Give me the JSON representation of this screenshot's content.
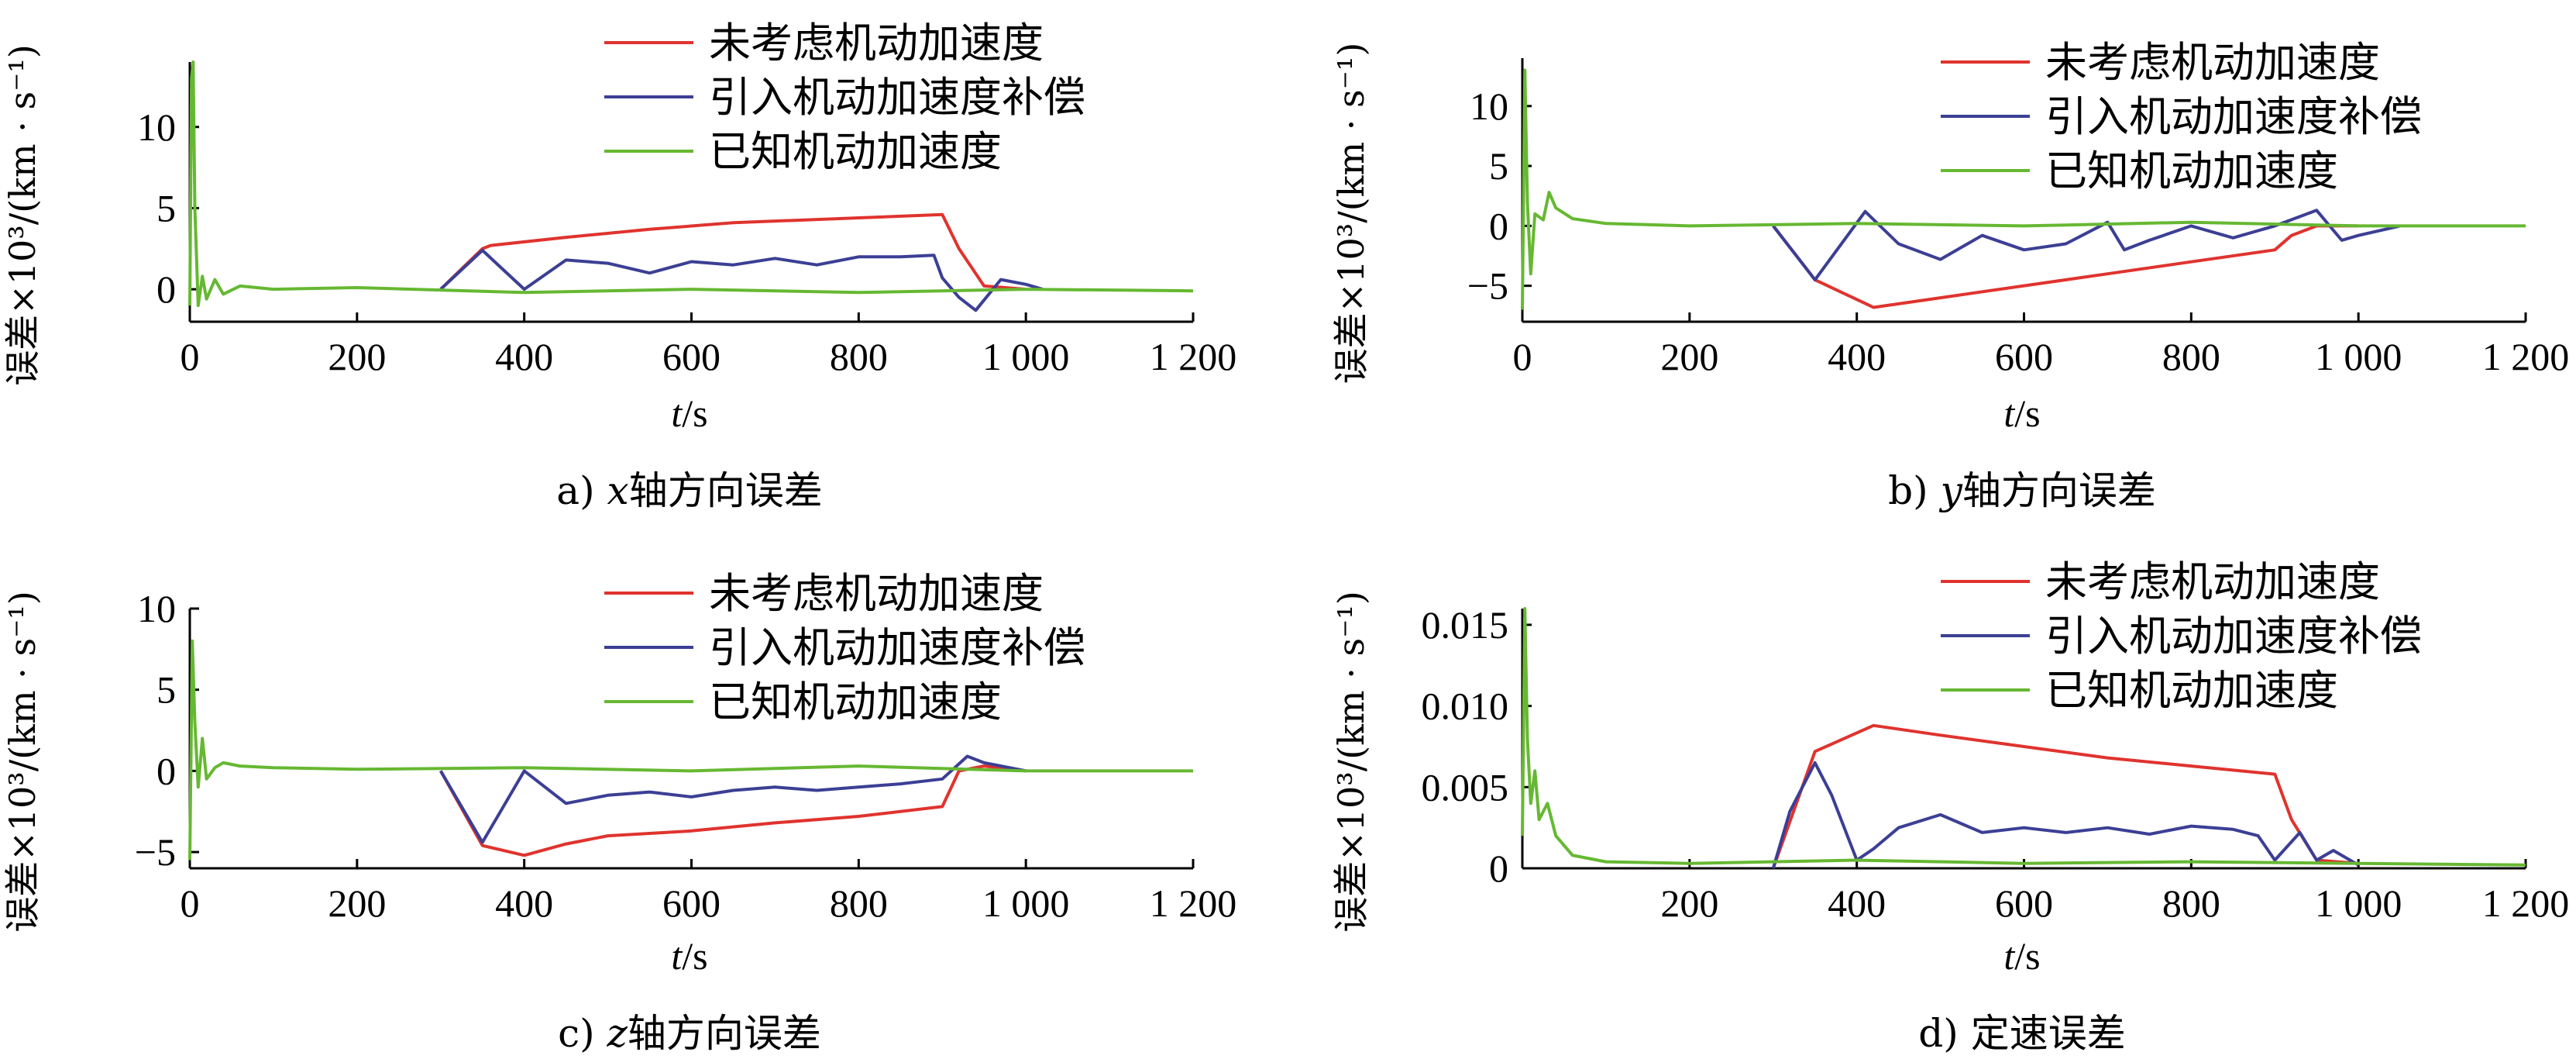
{
  "colors": {
    "red": "#e0332e",
    "blue": "#3b3f94",
    "green": "#66b832"
  },
  "chart_data": [
    {
      "type": "line",
      "caption_prefix": "a) ",
      "caption_var": "x",
      "caption_suffix": "轴方向误差",
      "ylabel": "误差×10³/(km · s⁻¹)",
      "xlabel_var": "t",
      "xlabel_unit": "/s",
      "xlim": [
        0,
        1200
      ],
      "ylim": [
        -2,
        14
      ],
      "xticks": [
        0,
        200,
        400,
        600,
        800,
        1000,
        1200
      ],
      "xtick_labels": [
        "0",
        "200",
        "400",
        "600",
        "800",
        "1 000",
        "1 200"
      ],
      "yticks": [
        0,
        5,
        10
      ],
      "ytick_labels": [
        "0",
        "5",
        "10"
      ],
      "legend": "top-right",
      "series": [
        {
          "name": "未考虑机动加速度",
          "color": "red",
          "x": [
            300,
            350,
            360,
            450,
            550,
            650,
            750,
            850,
            900,
            920,
            950,
            1000
          ],
          "y": [
            0,
            2.5,
            2.7,
            3.2,
            3.7,
            4.1,
            4.3,
            4.5,
            4.6,
            2.5,
            0.2,
            0
          ]
        },
        {
          "name": "引入机动加速度补偿",
          "color": "blue",
          "x": [
            300,
            350,
            400,
            450,
            500,
            550,
            600,
            650,
            700,
            750,
            800,
            850,
            890,
            900,
            920,
            940,
            970,
            1000,
            1020
          ],
          "y": [
            0,
            2.4,
            0,
            1.8,
            1.6,
            1.0,
            1.7,
            1.5,
            1.9,
            1.5,
            2.0,
            2.0,
            2.1,
            0.7,
            -0.5,
            -1.3,
            0.6,
            0.3,
            0
          ]
        },
        {
          "name": "已知机动加速度",
          "color": "green",
          "x": [
            0,
            2,
            4,
            6,
            10,
            15,
            20,
            30,
            40,
            60,
            100,
            200,
            400,
            600,
            800,
            1000,
            1200
          ],
          "y": [
            -1,
            13,
            14,
            5,
            -1,
            0.8,
            -0.6,
            0.6,
            -0.3,
            0.2,
            0,
            0.1,
            -0.2,
            0,
            -0.2,
            0,
            -0.1
          ]
        }
      ]
    },
    {
      "type": "line",
      "caption_prefix": "b) ",
      "caption_var": "y",
      "caption_suffix": "轴方向误差",
      "ylabel": "误差×10³/(km · s⁻¹)",
      "xlabel_var": "t",
      "xlabel_unit": "/s",
      "xlim": [
        0,
        1200
      ],
      "ylim": [
        -8,
        14
      ],
      "xticks": [
        0,
        200,
        400,
        600,
        800,
        1000,
        1200
      ],
      "xtick_labels": [
        "0",
        "200",
        "400",
        "600",
        "800",
        "1 000",
        "1 200"
      ],
      "yticks": [
        -5,
        0,
        5,
        10
      ],
      "ytick_labels": [
        "−5",
        "0",
        "5",
        "10"
      ],
      "legend": "top-right",
      "series": [
        {
          "name": "未考虑机动加速度",
          "color": "red",
          "x": [
            300,
            350,
            420,
            500,
            600,
            700,
            800,
            900,
            920,
            950,
            1000
          ],
          "y": [
            0,
            -4.5,
            -6.8,
            -6.0,
            -5.0,
            -4.0,
            -3.0,
            -2.0,
            -0.8,
            0,
            0
          ]
        },
        {
          "name": "引入机动加速度补偿",
          "color": "blue",
          "x": [
            300,
            350,
            410,
            450,
            500,
            550,
            600,
            650,
            700,
            720,
            750,
            800,
            850,
            900,
            950,
            980,
            1000,
            1050
          ],
          "y": [
            0,
            -4.5,
            1.2,
            -1.5,
            -2.8,
            -0.8,
            -2.0,
            -1.5,
            0.3,
            -2.0,
            -1.2,
            0,
            -1.0,
            0,
            1.3,
            -1.2,
            -0.8,
            0
          ]
        },
        {
          "name": "已知机动加速度",
          "color": "green",
          "x": [
            0,
            3,
            6,
            10,
            15,
            25,
            32,
            40,
            60,
            100,
            200,
            400,
            600,
            800,
            1000,
            1200
          ],
          "y": [
            -7,
            13,
            2,
            -4,
            1,
            0.5,
            2.8,
            1.5,
            0.6,
            0.2,
            0,
            0.2,
            0,
            0.3,
            0,
            0
          ]
        }
      ]
    },
    {
      "type": "line",
      "caption_prefix": "c) ",
      "caption_var": "z",
      "caption_suffix": "轴方向误差",
      "ylabel": "误差×10³/(km · s⁻¹)",
      "xlabel_var": "t",
      "xlabel_unit": "/s",
      "xlim": [
        0,
        1200
      ],
      "ylim": [
        -6,
        10
      ],
      "xticks": [
        0,
        200,
        400,
        600,
        800,
        1000,
        1200
      ],
      "xtick_labels": [
        "0",
        "200",
        "400",
        "600",
        "800",
        "1 000",
        "1 200"
      ],
      "yticks": [
        -5,
        0,
        5,
        10
      ],
      "ytick_labels": [
        "−5",
        "0",
        "5",
        "10"
      ],
      "legend": "top-right",
      "series": [
        {
          "name": "未考虑机动加速度",
          "color": "red",
          "x": [
            300,
            350,
            400,
            450,
            500,
            600,
            700,
            800,
            900,
            920,
            950,
            1000
          ],
          "y": [
            0,
            -4.6,
            -5.2,
            -4.5,
            -4.0,
            -3.7,
            -3.2,
            -2.8,
            -2.2,
            0,
            0.3,
            0
          ]
        },
        {
          "name": "引入机动加速度补偿",
          "color": "blue",
          "x": [
            300,
            350,
            400,
            450,
            500,
            550,
            600,
            650,
            700,
            750,
            800,
            850,
            900,
            930,
            950,
            1000
          ],
          "y": [
            0,
            -4.4,
            0,
            -2.0,
            -1.5,
            -1.3,
            -1.6,
            -1.2,
            -1.0,
            -1.2,
            -1.0,
            -0.8,
            -0.5,
            0.9,
            0.5,
            0
          ]
        },
        {
          "name": "已知机动加速度",
          "color": "green",
          "x": [
            0,
            3,
            6,
            10,
            15,
            20,
            30,
            40,
            60,
            100,
            200,
            400,
            600,
            800,
            1000,
            1200
          ],
          "y": [
            -5.5,
            8,
            3,
            -1,
            2,
            -0.5,
            0.2,
            0.5,
            0.3,
            0.2,
            0.1,
            0.2,
            0,
            0.3,
            0,
            0
          ]
        }
      ]
    },
    {
      "type": "line",
      "caption_prefix": "d) ",
      "caption_var": "",
      "caption_suffix": "定速误差",
      "ylabel": "误差×10³/(km · s⁻¹)",
      "xlabel_var": "t",
      "xlabel_unit": "/s",
      "xlim": [
        0,
        1200
      ],
      "ylim": [
        0,
        0.016
      ],
      "xticks": [
        200,
        400,
        600,
        800,
        1000,
        1200
      ],
      "xtick_labels": [
        "200",
        "400",
        "600",
        "800",
        "1 000",
        "1 200"
      ],
      "yticks": [
        0,
        0.005,
        0.01,
        0.015
      ],
      "ytick_labels": [
        "0",
        "0.005",
        "0.010",
        "0.015"
      ],
      "legend": "top-right",
      "series": [
        {
          "name": "未考虑机动加速度",
          "color": "red",
          "x": [
            300,
            350,
            420,
            500,
            600,
            700,
            800,
            900,
            920,
            950,
            1000
          ],
          "y": [
            0,
            0.0072,
            0.0088,
            0.0082,
            0.0075,
            0.0068,
            0.0063,
            0.0058,
            0.003,
            0.0005,
            0.0003
          ]
        },
        {
          "name": "引入机动加速度补偿",
          "color": "blue",
          "x": [
            300,
            320,
            350,
            370,
            400,
            420,
            450,
            500,
            550,
            600,
            650,
            700,
            750,
            800,
            850,
            880,
            900,
            930,
            950,
            970,
            1000
          ],
          "y": [
            0,
            0.0035,
            0.0065,
            0.0045,
            0.0005,
            0.0012,
            0.0025,
            0.0033,
            0.0022,
            0.0025,
            0.0022,
            0.0025,
            0.0021,
            0.0026,
            0.0024,
            0.002,
            0.0005,
            0.0022,
            0.0005,
            0.0011,
            0.0002
          ]
        },
        {
          "name": "已知机动加速度",
          "color": "green",
          "x": [
            0,
            3,
            6,
            10,
            15,
            20,
            30,
            40,
            60,
            100,
            200,
            400,
            600,
            800,
            1000,
            1200
          ],
          "y": [
            0.002,
            0.016,
            0.008,
            0.004,
            0.006,
            0.003,
            0.004,
            0.002,
            0.0008,
            0.0004,
            0.0003,
            0.0005,
            0.0003,
            0.0004,
            0.0003,
            0.0002
          ]
        }
      ]
    }
  ]
}
